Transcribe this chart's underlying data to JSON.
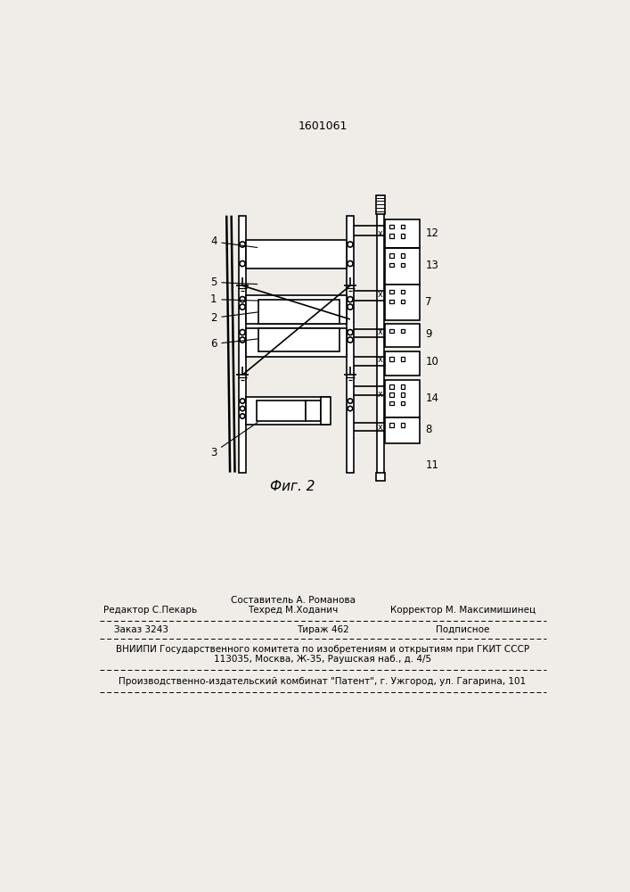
{
  "title": "1601061",
  "fig_label": "Фиг. 2",
  "bg": "#f0ede8",
  "lc": "#000000",
  "footer_compositor": "Составитель А. Романова",
  "footer_tehred": "Техред М.Ходанич",
  "footer_editor": "Редактор С.Пекарь",
  "footer_corrector": "Корректор М. Максимишинец",
  "footer_order": "Заказ 3243",
  "footer_tiraj": "Тираж 462",
  "footer_podp": "Подписное",
  "footer_vnipi": "ВНИИПИ Государственного комитета по изобретениям и открытиям при ГКИТ СССР",
  "footer_addr": "113035, Москва, Ж-35, Раушская наб., д. 4/5",
  "footer_prod": "Производственно-издательский комбинат \"Патент\", г. Ужгород, ул. Гагарина, 101"
}
